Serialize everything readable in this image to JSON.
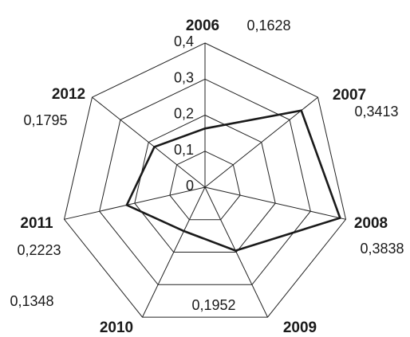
{
  "chart_data": {
    "type": "radar",
    "categories": [
      "2006",
      "2007",
      "2008",
      "2009",
      "2010",
      "2011",
      "2012"
    ],
    "value_labels": [
      "0,1628",
      "0,3413",
      "0,3838",
      "0,1952",
      "0,1348",
      "0,2223",
      "0,1795"
    ],
    "series": [
      {
        "values": [
          0.1628,
          0.3413,
          0.3838,
          0.1952,
          0.1348,
          0.2223,
          0.1795
        ]
      }
    ],
    "ticks": [
      "0",
      "0,1",
      "0,2",
      "0,3",
      "0,4"
    ],
    "rlim": [
      0,
      0.4
    ],
    "grid": true,
    "legend": "none"
  }
}
